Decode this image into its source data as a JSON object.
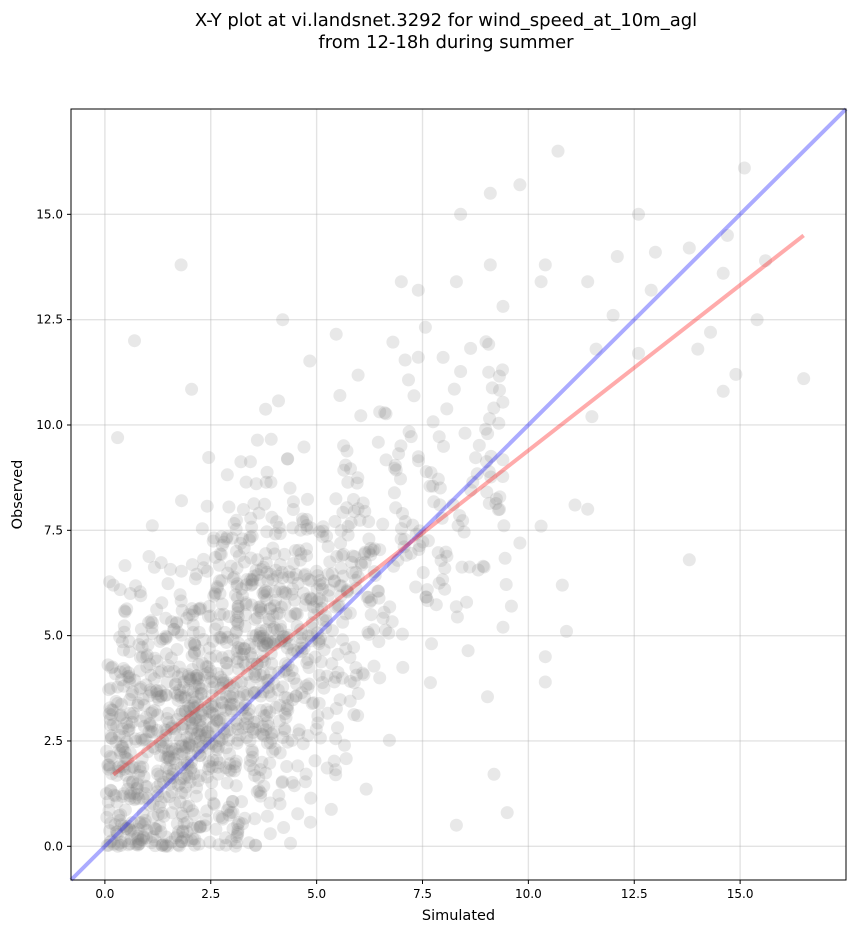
{
  "chart_data": {
    "type": "scatter",
    "title_lines": [
      "X-Y plot at vi.landsnet.3292 for wind_speed_at_10m_agl",
      "from 12-18h during summer"
    ],
    "xlabel": "Simulated",
    "ylabel": "Observed",
    "xlim": [
      -0.8,
      17.5
    ],
    "ylim": [
      -0.8,
      17.5
    ],
    "x_ticks": [
      0.0,
      2.5,
      5.0,
      7.5,
      10.0,
      12.5,
      15.0
    ],
    "x_tick_labels": [
      "0.0",
      "2.5",
      "5.0",
      "7.5",
      "10.0",
      "12.5",
      "15.0"
    ],
    "y_ticks": [
      0.0,
      2.5,
      5.0,
      7.5,
      10.0,
      12.5,
      15.0
    ],
    "y_tick_labels": [
      "0.0",
      "2.5",
      "5.0",
      "7.5",
      "10.0",
      "12.5",
      "15.0"
    ],
    "grid": true,
    "points_color": "#808080",
    "points_note_count": 1400,
    "sample_points": [
      [
        0.7,
        12.0
      ],
      [
        1.8,
        13.8
      ],
      [
        4.2,
        12.5
      ],
      [
        10.7,
        16.5
      ],
      [
        15.1,
        16.1
      ],
      [
        9.1,
        15.5
      ],
      [
        9.8,
        15.7
      ],
      [
        8.4,
        15.0
      ],
      [
        12.6,
        15.0
      ],
      [
        13.8,
        14.2
      ],
      [
        14.7,
        14.5
      ],
      [
        15.6,
        13.9
      ],
      [
        12.1,
        14.0
      ],
      [
        13.0,
        14.1
      ],
      [
        7.4,
        13.2
      ],
      [
        8.3,
        13.4
      ],
      [
        9.1,
        13.8
      ],
      [
        10.4,
        13.8
      ],
      [
        10.3,
        13.4
      ],
      [
        11.4,
        13.4
      ],
      [
        12.9,
        13.2
      ],
      [
        7.0,
        13.4
      ],
      [
        14.6,
        13.6
      ],
      [
        16.5,
        11.1
      ],
      [
        15.4,
        12.5
      ],
      [
        14.0,
        11.8
      ],
      [
        14.3,
        12.2
      ],
      [
        14.9,
        11.2
      ],
      [
        14.6,
        10.8
      ],
      [
        13.8,
        6.8
      ],
      [
        10.8,
        6.2
      ],
      [
        10.9,
        5.1
      ],
      [
        10.4,
        4.5
      ],
      [
        10.4,
        3.9
      ],
      [
        9.5,
        0.8
      ],
      [
        8.3,
        0.5
      ],
      [
        0.3,
        9.7
      ],
      [
        0.2,
        6.2
      ],
      [
        0.6,
        6.0
      ],
      [
        12.0,
        12.6
      ],
      [
        11.6,
        11.8
      ],
      [
        12.6,
        11.7
      ],
      [
        11.5,
        10.2
      ],
      [
        11.4,
        8.0
      ],
      [
        11.1,
        8.1
      ],
      [
        10.3,
        7.6
      ],
      [
        9.8,
        7.2
      ],
      [
        9.6,
        5.7
      ],
      [
        9.4,
        5.2
      ]
    ],
    "lines": [
      {
        "name": "1:1 line",
        "color": "#0000ff",
        "x": [
          -0.8,
          17.5
        ],
        "y": [
          -0.8,
          17.5
        ]
      },
      {
        "name": "regression fit",
        "color": "#ff0000",
        "x": [
          0.2,
          16.5
        ],
        "y": [
          1.7,
          14.5
        ]
      }
    ]
  }
}
